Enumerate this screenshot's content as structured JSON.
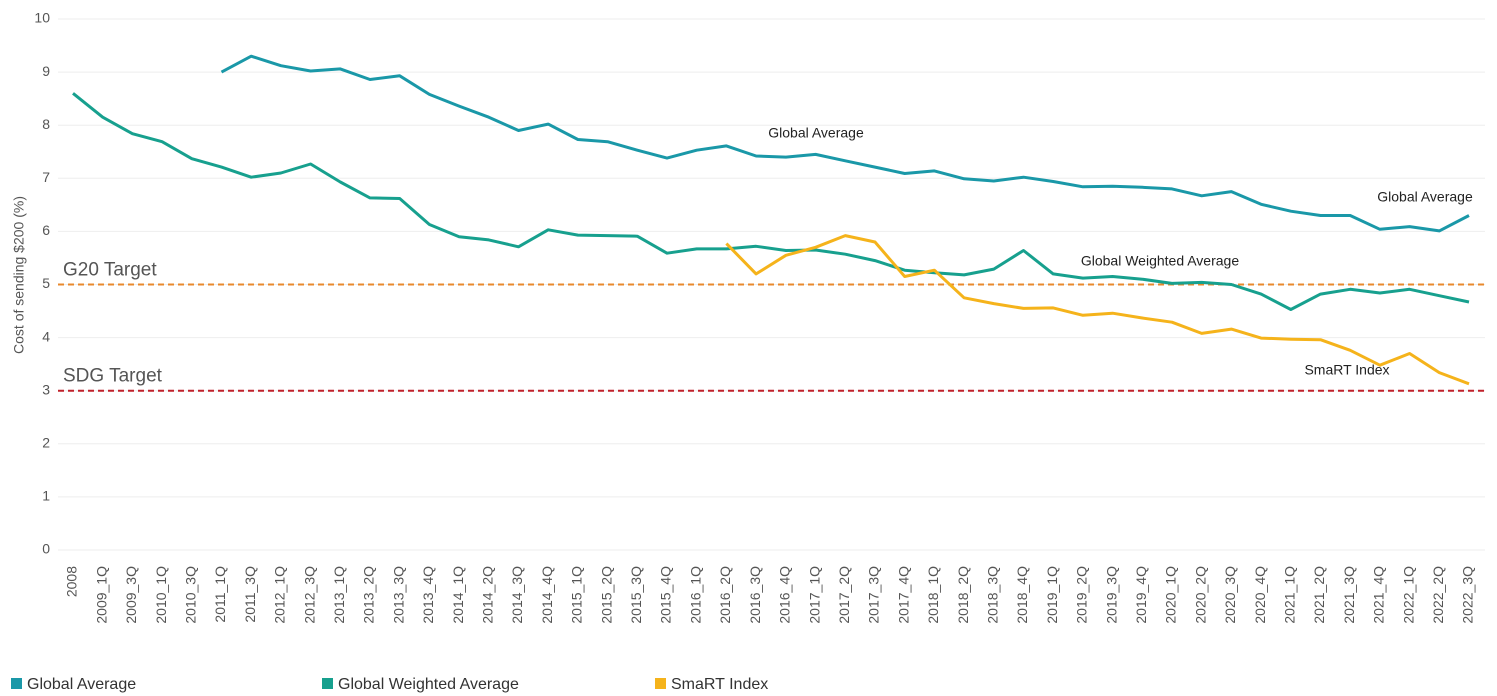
{
  "chart_data": {
    "type": "line",
    "y_label": "Cost of sending $200 (%)",
    "categories": [
      "2008",
      "2009_1Q",
      "2009_3Q",
      "2010_1Q",
      "2010_3Q",
      "2011_1Q",
      "2011_3Q",
      "2012_1Q",
      "2012_3Q",
      "2013_1Q",
      "2013_2Q",
      "2013_3Q",
      "2013_4Q",
      "2014_1Q",
      "2014_2Q",
      "2014_3Q",
      "2014_4Q",
      "2015_1Q",
      "2015_2Q",
      "2015_3Q",
      "2015_4Q",
      "2016_1Q",
      "2016_2Q",
      "2016_3Q",
      "2016_4Q",
      "2017_1Q",
      "2017_2Q",
      "2017_3Q",
      "2017_4Q",
      "2018_1Q",
      "2018_2Q",
      "2018_3Q",
      "2018_4Q",
      "2019_1Q",
      "2019_2Q",
      "2019_3Q",
      "2019_4Q",
      "2020_1Q",
      "2020_2Q",
      "2020_3Q",
      "2020_4Q",
      "2021_1Q",
      "2021_2Q",
      "2021_3Q",
      "2021_4Q",
      "2022_1Q",
      "2022_2Q",
      "2022_3Q"
    ],
    "series": [
      {
        "name": "Global Average",
        "color": "#1a98a8",
        "values": [
          null,
          null,
          null,
          null,
          null,
          9.0,
          9.3,
          9.12,
          9.02,
          9.06,
          8.86,
          8.93,
          8.58,
          8.36,
          8.15,
          7.9,
          8.02,
          7.73,
          7.69,
          7.53,
          7.38,
          7.53,
          7.61,
          7.42,
          7.4,
          7.45,
          7.33,
          7.21,
          7.09,
          7.14,
          6.99,
          6.95,
          7.02,
          6.94,
          6.84,
          6.85,
          6.83,
          6.8,
          6.67,
          6.75,
          6.51,
          6.38,
          6.3,
          6.3,
          6.04,
          6.09,
          6.01,
          6.3
        ]
      },
      {
        "name": "Global Weighted Average",
        "color": "#17a08e",
        "values": [
          8.6,
          8.15,
          7.84,
          7.69,
          7.37,
          7.21,
          7.02,
          7.1,
          7.27,
          6.93,
          6.63,
          6.62,
          6.13,
          5.9,
          5.84,
          5.71,
          6.03,
          5.93,
          5.92,
          5.91,
          5.59,
          5.67,
          5.67,
          5.72,
          5.64,
          5.65,
          5.57,
          5.45,
          5.27,
          5.22,
          5.18,
          5.29,
          5.64,
          5.2,
          5.12,
          5.15,
          5.1,
          5.02,
          5.04,
          5.0,
          4.82,
          4.53,
          4.82,
          4.91,
          4.84,
          4.91,
          4.79,
          4.67
        ]
      },
      {
        "name": "SmaRT Index",
        "color": "#f5b31b",
        "values": [
          null,
          null,
          null,
          null,
          null,
          null,
          null,
          null,
          null,
          null,
          null,
          null,
          null,
          null,
          null,
          null,
          null,
          null,
          null,
          null,
          null,
          null,
          5.77,
          5.2,
          5.55,
          5.7,
          5.92,
          5.8,
          5.15,
          5.27,
          4.75,
          4.64,
          4.55,
          4.56,
          4.42,
          4.46,
          4.37,
          4.29,
          4.08,
          4.16,
          3.99,
          3.97,
          3.96,
          3.76,
          3.48,
          3.7,
          3.34,
          3.13
        ]
      }
    ],
    "reference_lines": [
      {
        "label": "G20 Target",
        "value": 5,
        "color": "#e8892c"
      },
      {
        "label": "SDG Target",
        "value": 3,
        "color": "#c0202a"
      }
    ],
    "annotations": [
      "Global Average",
      "Global Average",
      "Global Weighted Average",
      "SmaRT Index"
    ],
    "ylim": [
      0,
      10
    ],
    "yticks": [
      0,
      1,
      2,
      3,
      4,
      5,
      6,
      7,
      8,
      9,
      10
    ],
    "grid": true
  }
}
